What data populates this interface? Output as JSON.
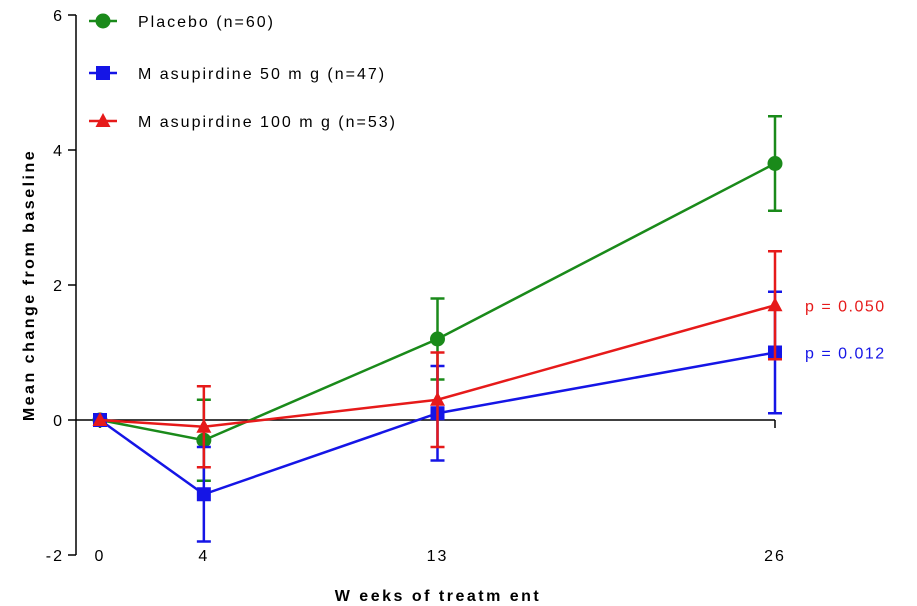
{
  "chart_data": {
    "type": "line",
    "xlabel": "W eeks of treatm ent",
    "ylabel": "Mean change from baseline",
    "x_ticks": [
      0,
      4,
      13,
      26
    ],
    "x_tick_labels": [
      "0",
      "4",
      "13",
      "26"
    ],
    "y_ticks": [
      -2,
      0,
      2,
      4,
      6
    ],
    "y_tick_labels": [
      "-2",
      "0",
      "2",
      "4",
      "6"
    ],
    "xlim": [
      0,
      26
    ],
    "ylim": [
      -2,
      6
    ],
    "grid": false,
    "legend_position": "top-left",
    "series": [
      {
        "name": "Placebo (n=60)",
        "color": "#1a8a1a",
        "marker": "circle",
        "x": [
          0,
          4,
          13,
          26
        ],
        "y": [
          0,
          -0.3,
          1.2,
          3.8
        ],
        "err_low": [
          0,
          -0.9,
          0.6,
          3.1
        ],
        "err_high": [
          0,
          0.3,
          1.8,
          4.5
        ]
      },
      {
        "name": "M asupirdine 50 m g (n=47)",
        "color": "#1515e6",
        "marker": "square",
        "x": [
          0,
          4,
          13,
          26
        ],
        "y": [
          0,
          -1.1,
          0.1,
          1.0
        ],
        "err_low": [
          0,
          -1.8,
          -0.6,
          0.1
        ],
        "err_high": [
          0,
          -0.4,
          0.8,
          1.9
        ]
      },
      {
        "name": "M asupirdine 100 m g (n=53)",
        "color": "#e61a1a",
        "marker": "triangle",
        "x": [
          0,
          4,
          13,
          26
        ],
        "y": [
          0,
          -0.1,
          0.3,
          1.7
        ],
        "err_low": [
          0,
          -0.7,
          -0.4,
          0.9
        ],
        "err_high": [
          0,
          0.5,
          1.0,
          2.5
        ]
      }
    ],
    "annotations": [
      {
        "text": "p = 0.050",
        "color": "#e61a1a",
        "series": 2
      },
      {
        "text": "p = 0.012",
        "color": "#1515e6",
        "series": 1
      }
    ]
  }
}
